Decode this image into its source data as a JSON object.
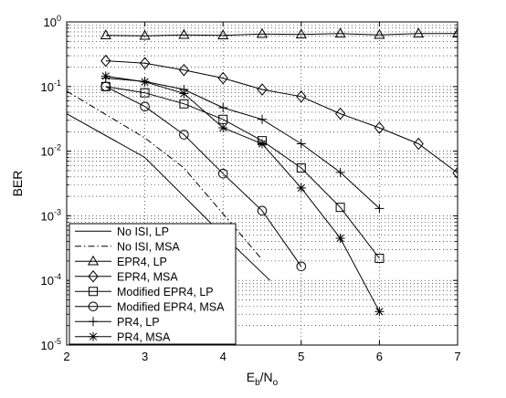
{
  "chart_data": {
    "type": "line",
    "xlabel": "E_b/N_o",
    "xlabel_main": "E",
    "xlabel_sub1": "b",
    "xlabel_sep": "/N",
    "xlabel_sub2": "o",
    "ylabel": "BER",
    "xlim": [
      2,
      7
    ],
    "ylim_log10": [
      -5,
      0
    ],
    "y_scale": "log",
    "grid": true,
    "legend_position": "bottom-left",
    "x_ticks": [
      2,
      3,
      4,
      5,
      6,
      7
    ],
    "x_tick_labels": [
      "2",
      "3",
      "4",
      "5",
      "6",
      "7"
    ],
    "y_tick_exponents": [
      -5,
      -4,
      -3,
      -2,
      -1,
      0
    ],
    "y_tick_labels": [
      "10",
      "10",
      "10",
      "10",
      "10",
      "10"
    ],
    "y_tick_sup": [
      "-5",
      "-4",
      "-3",
      "-2",
      "-1",
      "0"
    ],
    "series": [
      {
        "name": "No ISI, LP",
        "line": "solid",
        "marker": "none",
        "x": [
          2,
          3,
          4,
          4.6
        ],
        "y": [
          0.038,
          0.008,
          0.0005,
          0.0001
        ]
      },
      {
        "name": "No ISI, MSA",
        "line": "dashdot",
        "marker": "none",
        "x": [
          2,
          3,
          3.5,
          4.5
        ],
        "y": [
          0.085,
          0.016,
          0.0055,
          0.00021
        ]
      },
      {
        "name": "EPR4, LP",
        "line": "solid",
        "marker": "triangle",
        "x": [
          2.5,
          3,
          3.5,
          4,
          4.5,
          5,
          5.5,
          6,
          6.5,
          7
        ],
        "y": [
          0.62,
          0.61,
          0.63,
          0.62,
          0.65,
          0.64,
          0.66,
          0.63,
          0.66,
          0.66
        ]
      },
      {
        "name": "EPR4, MSA",
        "line": "solid",
        "marker": "diamond",
        "x": [
          2.5,
          3,
          3.5,
          4,
          4.5,
          5,
          5.5,
          6,
          6.5,
          7
        ],
        "y": [
          0.25,
          0.23,
          0.18,
          0.135,
          0.09,
          0.07,
          0.038,
          0.023,
          0.013,
          0.0046
        ]
      },
      {
        "name": "Modified EPR4, LP",
        "line": "solid",
        "marker": "square",
        "x": [
          2.5,
          3,
          3.5,
          4,
          4.5,
          5,
          5.5,
          6
        ],
        "y": [
          0.1,
          0.08,
          0.054,
          0.031,
          0.0145,
          0.0055,
          0.00135,
          0.00022
        ]
      },
      {
        "name": "Modified EPR4, MSA",
        "line": "solid",
        "marker": "circle",
        "x": [
          2.5,
          3,
          3.5,
          4,
          4.5,
          5
        ],
        "y": [
          0.1,
          0.049,
          0.018,
          0.0045,
          0.0012,
          0.000165
        ]
      },
      {
        "name": "PR4, LP",
        "line": "solid",
        "marker": "plus",
        "x": [
          2.5,
          3,
          3.5,
          4,
          4.5,
          5,
          5.5,
          6
        ],
        "y": [
          0.135,
          0.12,
          0.09,
          0.047,
          0.031,
          0.013,
          0.0047,
          0.0013
        ]
      },
      {
        "name": "PR4, MSA",
        "line": "solid",
        "marker": "star",
        "x": [
          2.5,
          3,
          3.5,
          4,
          4.5,
          5,
          5.5,
          6
        ],
        "y": [
          0.145,
          0.118,
          0.078,
          0.023,
          0.013,
          0.0027,
          0.00045,
          3.3e-05
        ]
      }
    ]
  }
}
